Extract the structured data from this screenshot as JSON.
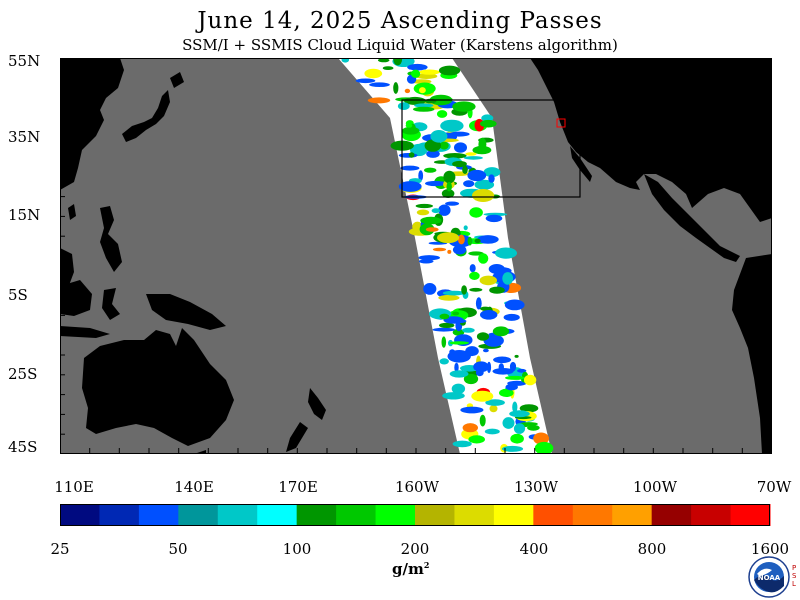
{
  "title": "June 14, 2025  Ascending Passes",
  "subtitle": "SSM/I + SSMIS Cloud Liquid Water (Karstens algorithm)",
  "map": {
    "lat_labels": [
      "55N",
      "35N",
      "15N",
      "5S",
      "25S",
      "45S"
    ],
    "lon_labels": [
      "110E",
      "140E",
      "170E",
      "160W",
      "130W",
      "100W",
      "70W"
    ],
    "colors": {
      "ocean": "#6b6b6b",
      "land": "#000000",
      "swath_clear": "#ffffff",
      "box_outline": "#000000",
      "marker": "#ff0000"
    }
  },
  "colorbar": {
    "tick_labels": [
      "25",
      "50",
      "100",
      "200",
      "400",
      "800",
      "1600"
    ],
    "colors": [
      "#000a80",
      "#0028b4",
      "#0050ff",
      "#00969b",
      "#00c8c8",
      "#00ffff",
      "#009600",
      "#00c800",
      "#00ff00",
      "#b4b400",
      "#dcdc00",
      "#ffff00",
      "#ff5000",
      "#ff7800",
      "#ffa000",
      "#960000",
      "#c80000",
      "#ff0000"
    ],
    "units": "g/m",
    "units_exp": "2"
  },
  "logo": {
    "text": "NOAA",
    "side_text": "PSL"
  }
}
